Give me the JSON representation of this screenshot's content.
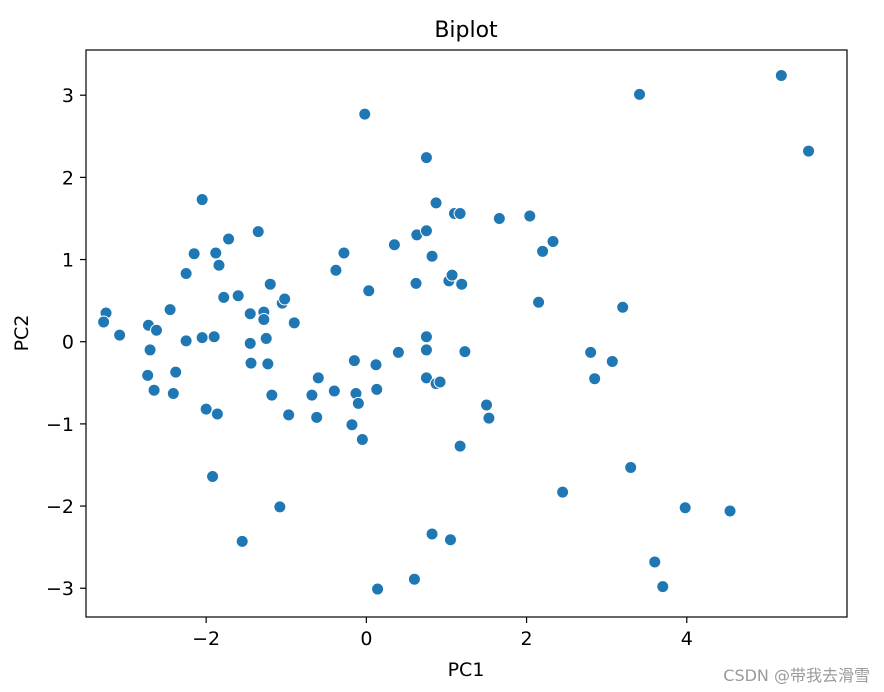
{
  "chart_data": {
    "type": "scatter",
    "title": "Biplot",
    "xlabel": "PC1",
    "ylabel": "PC2",
    "xlim": [
      -3.5,
      6.0
    ],
    "ylim": [
      -3.35,
      3.55
    ],
    "xticks": [
      -2,
      0,
      2,
      4
    ],
    "xtick_labels": [
      "−2",
      "0",
      "2",
      "4"
    ],
    "yticks": [
      -3,
      -2,
      -1,
      0,
      1,
      2,
      3
    ],
    "ytick_labels": [
      "−3",
      "−2",
      "−1",
      "0",
      "1",
      "2",
      "3"
    ],
    "grid": false,
    "marker_color": "#1f77b4",
    "points": [
      [
        -3.25,
        0.35
      ],
      [
        -3.28,
        0.24
      ],
      [
        -3.08,
        0.08
      ],
      [
        -2.72,
        0.2
      ],
      [
        -2.7,
        -0.1
      ],
      [
        -2.62,
        0.14
      ],
      [
        -2.73,
        -0.41
      ],
      [
        -2.65,
        -0.59
      ],
      [
        -2.45,
        0.39
      ],
      [
        -2.38,
        -0.37
      ],
      [
        -2.41,
        -0.63
      ],
      [
        -2.25,
        0.01
      ],
      [
        -2.25,
        0.83
      ],
      [
        -2.15,
        1.07
      ],
      [
        -2.05,
        1.73
      ],
      [
        -2.05,
        0.05
      ],
      [
        -2.0,
        -0.82
      ],
      [
        -1.92,
        -1.64
      ],
      [
        -1.9,
        0.06
      ],
      [
        -1.88,
        1.08
      ],
      [
        -1.84,
        0.93
      ],
      [
        -1.86,
        -0.88
      ],
      [
        -1.78,
        0.54
      ],
      [
        -1.72,
        1.25
      ],
      [
        -1.6,
        0.56
      ],
      [
        -1.55,
        -2.43
      ],
      [
        -1.45,
        0.34
      ],
      [
        -1.45,
        -0.02
      ],
      [
        -1.44,
        -0.26
      ],
      [
        -1.35,
        1.34
      ],
      [
        -1.28,
        0.36
      ],
      [
        -1.28,
        0.27
      ],
      [
        -1.25,
        0.04
      ],
      [
        -1.23,
        -0.27
      ],
      [
        -1.2,
        0.7
      ],
      [
        -1.18,
        -0.65
      ],
      [
        -1.08,
        -2.01
      ],
      [
        -1.05,
        0.47
      ],
      [
        -1.02,
        0.52
      ],
      [
        -0.97,
        -0.89
      ],
      [
        -0.9,
        0.23
      ],
      [
        -0.68,
        -0.65
      ],
      [
        -0.62,
        -0.92
      ],
      [
        -0.6,
        -0.44
      ],
      [
        -0.4,
        -0.6
      ],
      [
        -0.38,
        0.87
      ],
      [
        -0.28,
        1.08
      ],
      [
        -0.18,
        -1.01
      ],
      [
        -0.15,
        -0.23
      ],
      [
        -0.13,
        -0.63
      ],
      [
        -0.1,
        -0.75
      ],
      [
        -0.05,
        -1.19
      ],
      [
        -0.02,
        2.77
      ],
      [
        0.03,
        0.62
      ],
      [
        0.12,
        -0.28
      ],
      [
        0.13,
        -0.58
      ],
      [
        0.14,
        -3.01
      ],
      [
        0.35,
        1.18
      ],
      [
        0.4,
        -0.13
      ],
      [
        0.6,
        -2.89
      ],
      [
        0.62,
        0.71
      ],
      [
        0.63,
        1.3
      ],
      [
        0.75,
        2.24
      ],
      [
        0.75,
        1.35
      ],
      [
        0.75,
        0.06
      ],
      [
        0.75,
        -0.1
      ],
      [
        0.75,
        -0.44
      ],
      [
        0.82,
        1.04
      ],
      [
        0.82,
        -2.34
      ],
      [
        0.87,
        1.69
      ],
      [
        0.87,
        -0.51
      ],
      [
        0.92,
        -0.49
      ],
      [
        1.03,
        0.74
      ],
      [
        1.05,
        -2.41
      ],
      [
        1.07,
        0.81
      ],
      [
        1.1,
        1.56
      ],
      [
        1.17,
        1.56
      ],
      [
        1.17,
        -1.27
      ],
      [
        1.19,
        0.7
      ],
      [
        1.23,
        -0.12
      ],
      [
        1.5,
        -0.77
      ],
      [
        1.53,
        -0.93
      ],
      [
        1.66,
        1.5
      ],
      [
        2.04,
        1.53
      ],
      [
        2.15,
        0.48
      ],
      [
        2.2,
        1.1
      ],
      [
        2.33,
        1.22
      ],
      [
        2.45,
        -1.83
      ],
      [
        2.8,
        -0.13
      ],
      [
        2.85,
        -0.45
      ],
      [
        3.07,
        -0.24
      ],
      [
        3.2,
        0.42
      ],
      [
        3.3,
        -1.53
      ],
      [
        3.41,
        3.01
      ],
      [
        3.6,
        -2.68
      ],
      [
        3.7,
        -2.98
      ],
      [
        3.98,
        -2.02
      ],
      [
        4.54,
        -2.06
      ],
      [
        5.18,
        3.24
      ],
      [
        5.52,
        2.32
      ]
    ]
  },
  "watermark": "CSDN @带我去滑雪"
}
